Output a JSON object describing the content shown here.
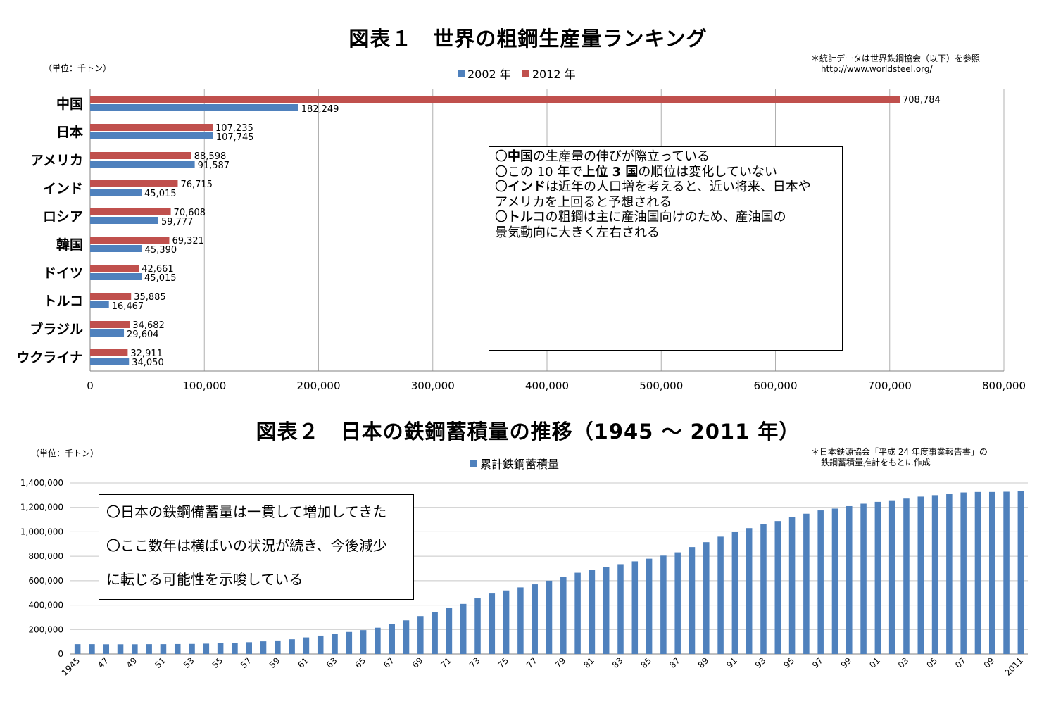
{
  "chart_data": [
    {
      "type": "bar",
      "orientation": "horizontal",
      "title": "図表１　世界の粗鋼生産量ランキング",
      "unit_label": "（単位：千トン）",
      "source_note": [
        "＊統計データは世界鉄鋼協会（以下）を参照",
        "http://www.worldsteel.org/"
      ],
      "categories": [
        "中国",
        "日本",
        "アメリカ",
        "インド",
        "ロシア",
        "韓国",
        "ドイツ",
        "トルコ",
        "ブラジル",
        "ウクライナ"
      ],
      "series": [
        {
          "name": "2002 年",
          "color": "#4f81bd",
          "values": [
            182249,
            107745,
            91587,
            45015,
            59777,
            45390,
            45015,
            16467,
            29604,
            34050
          ],
          "labels": [
            "182,249",
            "107,745",
            "91,587",
            "45,015",
            "59,777",
            "45,390",
            "45,015",
            "16,467",
            "29,604",
            "34,050"
          ]
        },
        {
          "name": "2012 年",
          "color": "#c0504d",
          "values": [
            708784,
            107235,
            88598,
            76715,
            70608,
            69321,
            42661,
            35885,
            34682,
            32911
          ],
          "labels": [
            "708,784",
            "107,235",
            "88,598",
            "76,715",
            "70,608",
            "69,321",
            "42,661",
            "35,885",
            "34,682",
            "32,911"
          ]
        }
      ],
      "xlim": [
        0,
        800000
      ],
      "xticks": [
        0,
        100000,
        200000,
        300000,
        400000,
        500000,
        600000,
        700000,
        800000
      ],
      "xtick_labels": [
        "0",
        "100,000",
        "200,000",
        "300,000",
        "400,000",
        "500,000",
        "600,000",
        "700,000",
        "800,000"
      ],
      "grid": "vertical",
      "legend_position": "top",
      "annotation_lines": [
        [
          {
            "t": "〇"
          },
          {
            "t": "中国",
            "b": true
          },
          {
            "t": "の生産量の伸びが際立っている"
          }
        ],
        [
          {
            "t": "〇この 10 年で"
          },
          {
            "t": "上位 3 国",
            "b": true
          },
          {
            "t": "の順位は変化していない"
          }
        ],
        [
          {
            "t": "〇"
          },
          {
            "t": "インド",
            "b": true
          },
          {
            "t": "は近年の人口増を考えると、近い将来、日本や"
          }
        ],
        [
          {
            "t": "アメリカを上回ると予想される"
          }
        ],
        [
          {
            "t": "〇"
          },
          {
            "t": "トルコ",
            "b": true
          },
          {
            "t": "の粗鋼は主に産油国向けのため、産油国の"
          }
        ],
        [
          {
            "t": "景気動向に大きく左右される"
          }
        ]
      ]
    },
    {
      "type": "bar",
      "title": "図表２　日本の鉄鋼蓄積量の推移（1945 ～ 2011 年）",
      "unit_label": "（単位：千トン）",
      "source_note": [
        "＊日本鉄源協会「平成 24 年度事業報告書」の",
        "鉄鋼蓄積量推計をもとに作成"
      ],
      "series": [
        {
          "name": "累計鉄鋼蓄積量",
          "color": "#4f81bd",
          "x": [
            1945,
            1946,
            1947,
            1948,
            1949,
            1950,
            1951,
            1952,
            1953,
            1954,
            1955,
            1956,
            1957,
            1958,
            1959,
            1960,
            1961,
            1962,
            1963,
            1964,
            1965,
            1966,
            1967,
            1968,
            1969,
            1970,
            1971,
            1972,
            1973,
            1974,
            1975,
            1976,
            1977,
            1978,
            1979,
            1980,
            1981,
            1982,
            1983,
            1984,
            1985,
            1986,
            1987,
            1988,
            1989,
            1990,
            1991,
            1992,
            1993,
            1994,
            1995,
            1996,
            1997,
            1998,
            1999,
            2000,
            2001,
            2002,
            2003,
            2004,
            2005,
            2006,
            2007,
            2008,
            2009,
            2010,
            2011
          ],
          "values": [
            80000,
            80000,
            79000,
            79000,
            79000,
            80000,
            80000,
            81000,
            82000,
            84000,
            87000,
            91000,
            96000,
            103000,
            110000,
            120000,
            135000,
            150000,
            165000,
            180000,
            195000,
            215000,
            245000,
            275000,
            310000,
            345000,
            375000,
            410000,
            455000,
            495000,
            520000,
            545000,
            570000,
            600000,
            630000,
            665000,
            690000,
            712000,
            735000,
            758000,
            780000,
            805000,
            832000,
            875000,
            915000,
            960000,
            1000000,
            1030000,
            1060000,
            1088000,
            1118000,
            1148000,
            1175000,
            1190000,
            1210000,
            1230000,
            1245000,
            1258000,
            1272000,
            1288000,
            1300000,
            1312000,
            1322000,
            1326000,
            1326000,
            1328000,
            1332000
          ]
        }
      ],
      "xtick_labels": [
        "1945",
        "47",
        "49",
        "51",
        "53",
        "55",
        "57",
        "59",
        "61",
        "63",
        "65",
        "67",
        "69",
        "71",
        "73",
        "75",
        "77",
        "79",
        "81",
        "83",
        "85",
        "87",
        "89",
        "91",
        "93",
        "95",
        "97",
        "99",
        "01",
        "03",
        "05",
        "07",
        "09",
        "2011"
      ],
      "ylim": [
        0,
        1400000
      ],
      "yticks": [
        0,
        200000,
        400000,
        600000,
        800000,
        1000000,
        1200000,
        1400000
      ],
      "ytick_labels": [
        "0",
        "200,000",
        "400,000",
        "600,000",
        "800,000",
        "1,000,000",
        "1,200,000",
        "1,400,000"
      ],
      "grid": "horizontal",
      "legend_position": "top",
      "annotation_lines": [
        "〇日本の鉄鋼備蓄量は一貫して増加してきた",
        "〇ここ数年は横ばいの状況が続き、今後減少",
        "に転じる可能性を示唆している"
      ]
    }
  ]
}
